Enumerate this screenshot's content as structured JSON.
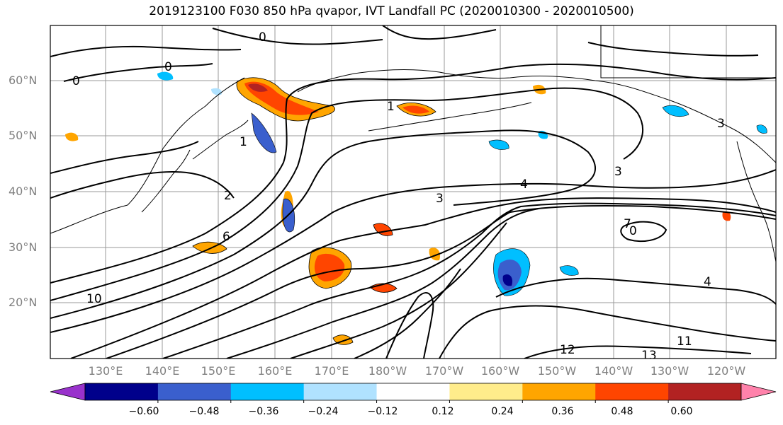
{
  "title": "2019123100 F030 850 hPa qvapor, IVT Landfall PC (2020010300 - 2020010500)",
  "lat_labels": [
    "60°N",
    "50°N",
    "40°N",
    "30°N",
    "20°N"
  ],
  "lon_labels": [
    "130°E",
    "140°E",
    "150°E",
    "160°E",
    "170°E",
    "180°W",
    "170°W",
    "160°W",
    "150°W",
    "140°W",
    "130°W",
    "120°W"
  ],
  "colorbar": {
    "colors": [
      "#9932cc",
      "#00008b",
      "#3a5fcd",
      "#00bfff",
      "#b0e2ff",
      "#ffffff",
      "#ffec8b",
      "#ffa500",
      "#ff4500",
      "#b22222",
      "#ff82ab"
    ],
    "tick_labels": [
      "−0.60",
      "−0.48",
      "−0.36",
      "−0.24",
      "−0.12",
      "0.12",
      "0.24",
      "0.36",
      "0.48",
      "0.60"
    ]
  },
  "contour_labels": [
    "0",
    "0",
    "0",
    "1",
    "1",
    "2",
    "3",
    "3",
    "4",
    "6",
    "7",
    "10",
    "11",
    "12",
    "13",
    "4",
    "3",
    "0"
  ]
}
